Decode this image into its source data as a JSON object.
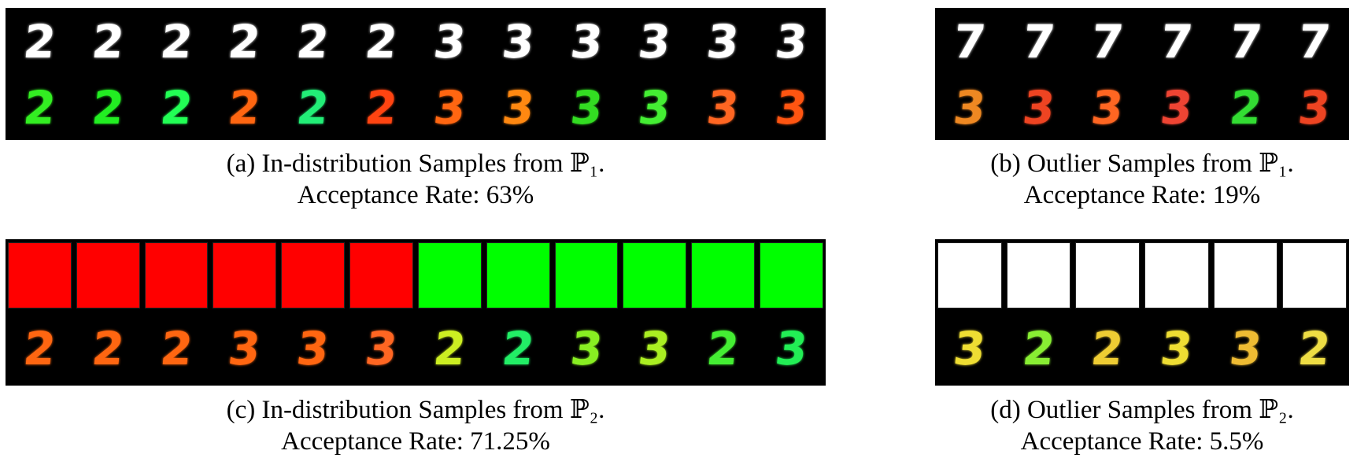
{
  "panels": [
    {
      "id": "a",
      "caption_line1": "(a) In-distribution Samples from ℙ₁.",
      "caption_line2": "Acceptance Rate: 63%",
      "rows": [
        {
          "kind": "digits",
          "items": [
            {
              "d": "2",
              "c": "#ffffff"
            },
            {
              "d": "2",
              "c": "#ffffff"
            },
            {
              "d": "2",
              "c": "#ffffff"
            },
            {
              "d": "2",
              "c": "#ffffff"
            },
            {
              "d": "2",
              "c": "#ffffff"
            },
            {
              "d": "2",
              "c": "#ffffff"
            },
            {
              "d": "3",
              "c": "#ffffff"
            },
            {
              "d": "3",
              "c": "#ffffff"
            },
            {
              "d": "3",
              "c": "#ffffff"
            },
            {
              "d": "3",
              "c": "#ffffff"
            },
            {
              "d": "3",
              "c": "#ffffff"
            },
            {
              "d": "3",
              "c": "#ffffff"
            }
          ]
        },
        {
          "kind": "digits",
          "items": [
            {
              "d": "2",
              "c": "#33ee22"
            },
            {
              "d": "2",
              "c": "#22ee22"
            },
            {
              "d": "2",
              "c": "#22ff55"
            },
            {
              "d": "2",
              "c": "#ff6611"
            },
            {
              "d": "2",
              "c": "#22ee77"
            },
            {
              "d": "2",
              "c": "#ff4411"
            },
            {
              "d": "3",
              "c": "#ff6611"
            },
            {
              "d": "3",
              "c": "#ff8811"
            },
            {
              "d": "3",
              "c": "#33dd22"
            },
            {
              "d": "3",
              "c": "#44ee33"
            },
            {
              "d": "3",
              "c": "#ff6622"
            },
            {
              "d": "3",
              "c": "#ff5511"
            }
          ]
        }
      ]
    },
    {
      "id": "b",
      "caption_line1": "(b) Outlier Samples from ℙ₁.",
      "caption_line2": "Acceptance Rate: 19%",
      "rows": [
        {
          "kind": "digits",
          "items": [
            {
              "d": "7",
              "c": "#ffffff"
            },
            {
              "d": "7",
              "c": "#ffffff"
            },
            {
              "d": "7",
              "c": "#ffffff"
            },
            {
              "d": "7",
              "c": "#ffffff"
            },
            {
              "d": "7",
              "c": "#ffffff"
            },
            {
              "d": "7",
              "c": "#ffffff"
            }
          ]
        },
        {
          "kind": "digits",
          "items": [
            {
              "d": "3",
              "c": "#ee8822"
            },
            {
              "d": "3",
              "c": "#ee4422"
            },
            {
              "d": "3",
              "c": "#ff6622"
            },
            {
              "d": "3",
              "c": "#ee4433"
            },
            {
              "d": "2",
              "c": "#33dd33"
            },
            {
              "d": "3",
              "c": "#ee4422"
            }
          ]
        }
      ]
    },
    {
      "id": "c",
      "caption_line1": "(c) In-distribution Samples from ℙ₂.",
      "caption_line2": "Acceptance Rate: 71.25%",
      "rows": [
        {
          "kind": "squares",
          "items": [
            {
              "c": "#ff0000"
            },
            {
              "c": "#ff0000"
            },
            {
              "c": "#ff0000"
            },
            {
              "c": "#ff0000"
            },
            {
              "c": "#ff0000"
            },
            {
              "c": "#ff0000"
            },
            {
              "c": "#00ff00"
            },
            {
              "c": "#00ff00"
            },
            {
              "c": "#00ff00"
            },
            {
              "c": "#00ff00"
            },
            {
              "c": "#00ff00"
            },
            {
              "c": "#00ff00"
            }
          ]
        },
        {
          "kind": "digits",
          "items": [
            {
              "d": "2",
              "c": "#ff6611"
            },
            {
              "d": "2",
              "c": "#ff6611"
            },
            {
              "d": "2",
              "c": "#ff6611"
            },
            {
              "d": "3",
              "c": "#ff6611"
            },
            {
              "d": "3",
              "c": "#ff6611"
            },
            {
              "d": "3",
              "c": "#ff6622"
            },
            {
              "d": "2",
              "c": "#ccee22"
            },
            {
              "d": "2",
              "c": "#22ee66"
            },
            {
              "d": "3",
              "c": "#88ee22"
            },
            {
              "d": "3",
              "c": "#aaee22"
            },
            {
              "d": "2",
              "c": "#44ee33"
            },
            {
              "d": "3",
              "c": "#22ee55"
            }
          ]
        }
      ]
    },
    {
      "id": "d",
      "caption_line1": "(d) Outlier Samples from ℙ₂.",
      "caption_line2": "Acceptance Rate: 5.5%",
      "rows": [
        {
          "kind": "squares",
          "items": [
            {
              "c": "#ffffff"
            },
            {
              "c": "#ffffff"
            },
            {
              "c": "#ffffff"
            },
            {
              "c": "#ffffff"
            },
            {
              "c": "#ffffff"
            },
            {
              "c": "#ffffff"
            }
          ]
        },
        {
          "kind": "digits",
          "items": [
            {
              "d": "3",
              "c": "#eedd33"
            },
            {
              "d": "2",
              "c": "#88ee33"
            },
            {
              "d": "2",
              "c": "#eecc33"
            },
            {
              "d": "3",
              "c": "#eedd33"
            },
            {
              "d": "3",
              "c": "#eebb33"
            },
            {
              "d": "2",
              "c": "#eedd44"
            }
          ]
        }
      ]
    }
  ]
}
